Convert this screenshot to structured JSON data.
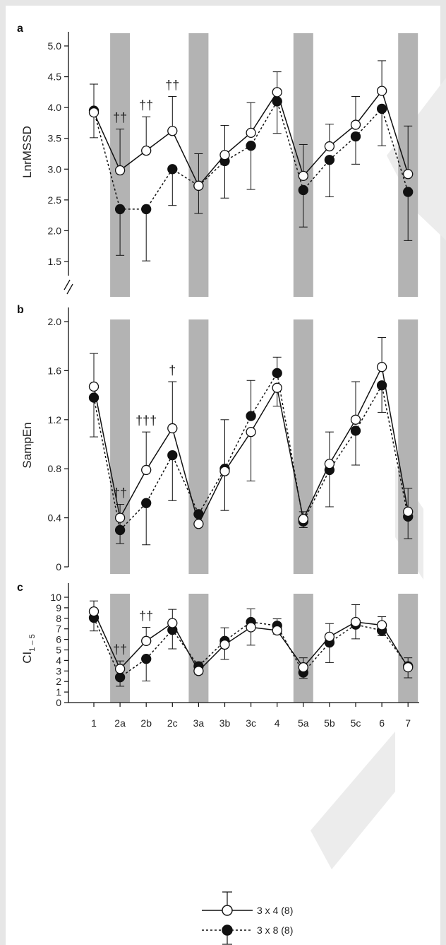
{
  "chart_data": [
    {
      "type": "line",
      "panel_label": "a",
      "ylabel": "LnrMSSD",
      "ylim": [
        1.1,
        5.3
      ],
      "ytick_labels": [
        "1.5",
        "2.0",
        "2.5",
        "3.0",
        "3.5",
        "4.0",
        "4.5",
        "5.0"
      ],
      "yticks": [
        1.5,
        2.0,
        2.5,
        3.0,
        3.5,
        4.0,
        4.5,
        5.0
      ],
      "axis_break": true,
      "categories": [
        "1",
        "2a",
        "2b",
        "2c",
        "3a",
        "3b",
        "3c",
        "4",
        "5a",
        "5b",
        "5c",
        "6",
        "7"
      ],
      "shaded_categories": [
        "2a",
        "3a",
        "5a",
        "7"
      ],
      "series": [
        {
          "name": "3 x 4 (8)",
          "marker": "open",
          "line": "solid",
          "values": [
            3.92,
            2.98,
            3.3,
            3.62,
            2.73,
            3.23,
            3.59,
            4.25,
            2.89,
            3.37,
            3.72,
            4.27,
            2.92
          ],
          "err_upper": [
            4.38,
            3.65,
            3.85,
            4.18,
            3.25,
            3.71,
            4.08,
            4.58,
            3.4,
            3.73,
            4.18,
            4.76,
            3.7
          ],
          "err_lower": [
            3.51,
            null,
            null,
            null,
            2.28,
            null,
            null,
            null,
            null,
            null,
            null,
            null,
            null
          ]
        },
        {
          "name": "3 x 8 (8)",
          "marker": "filled",
          "line": "dashed",
          "values": [
            3.95,
            2.35,
            2.35,
            3.0,
            2.73,
            3.13,
            3.38,
            4.1,
            2.66,
            3.15,
            3.53,
            3.98,
            2.63
          ],
          "err_upper": [
            null,
            null,
            null,
            null,
            null,
            null,
            null,
            null,
            null,
            null,
            null,
            null,
            null
          ],
          "err_lower": [
            null,
            1.6,
            1.51,
            2.41,
            null,
            2.53,
            2.67,
            3.58,
            2.06,
            2.55,
            3.08,
            3.38,
            1.84
          ]
        }
      ],
      "annotations": [
        {
          "category": "2a",
          "text": "††"
        },
        {
          "category": "2b",
          "text": "††"
        },
        {
          "category": "2c",
          "text": "††"
        }
      ]
    },
    {
      "type": "line",
      "panel_label": "b",
      "ylabel": "SampEn",
      "ylim": [
        0,
        2.0
      ],
      "ytick_labels": [
        "0",
        "0.4",
        "0.8",
        "1.2",
        "1.6",
        "2.0"
      ],
      "yticks": [
        0,
        0.4,
        0.8,
        1.2,
        1.6,
        2.0
      ],
      "axis_break": false,
      "categories": [
        "1",
        "2a",
        "2b",
        "2c",
        "3a",
        "3b",
        "3c",
        "4",
        "5a",
        "5b",
        "5c",
        "6",
        "7"
      ],
      "shaded_categories": [
        "2a",
        "3a",
        "5a",
        "7"
      ],
      "series": [
        {
          "name": "3 x 4 (8)",
          "marker": "open",
          "line": "solid",
          "values": [
            1.47,
            0.4,
            0.79,
            1.13,
            0.35,
            0.78,
            1.1,
            1.46,
            0.39,
            0.84,
            1.2,
            1.63,
            0.45
          ],
          "err_upper": [
            1.74,
            0.51,
            1.1,
            1.51,
            null,
            1.2,
            null,
            null,
            null,
            1.1,
            1.51,
            1.87,
            0.64
          ],
          "err_lower": [
            null,
            0.19,
            null,
            null,
            null,
            0.46,
            0.7,
            1.31,
            0.32,
            null,
            null,
            null,
            null
          ]
        },
        {
          "name": "3 x 8 (8)",
          "marker": "filled",
          "line": "dashed",
          "values": [
            1.38,
            0.3,
            0.52,
            0.91,
            0.43,
            0.8,
            1.23,
            1.58,
            0.37,
            0.79,
            1.11,
            1.48,
            0.41
          ],
          "err_upper": [
            null,
            null,
            null,
            null,
            null,
            null,
            1.52,
            1.71,
            0.45,
            null,
            null,
            null,
            null
          ],
          "err_lower": [
            1.06,
            null,
            0.18,
            0.54,
            null,
            null,
            null,
            null,
            null,
            0.49,
            0.83,
            1.26,
            0.23
          ]
        }
      ],
      "annotations": [
        {
          "category": "2a",
          "text": "††"
        },
        {
          "category": "2b",
          "text": "†††"
        },
        {
          "category": "2c",
          "text": "†"
        }
      ]
    },
    {
      "type": "line",
      "panel_label": "c",
      "ylabel": "CI",
      "ylabel_subscript": "1 – 5",
      "ylim": [
        0,
        10
      ],
      "ytick_labels": [
        "0",
        "1",
        "2",
        "3",
        "4",
        "5",
        "6",
        "7",
        "8",
        "9",
        "10"
      ],
      "yticks": [
        0,
        1,
        2,
        3,
        4,
        5,
        6,
        7,
        8,
        9,
        10
      ],
      "axis_break": false,
      "categories": [
        "1",
        "2a",
        "2b",
        "2c",
        "3a",
        "3b",
        "3c",
        "4",
        "5a",
        "5b",
        "5c",
        "6",
        "7"
      ],
      "shaded_categories": [
        "2a",
        "3a",
        "5a",
        "7"
      ],
      "series": [
        {
          "name": "3 x 4 (8)",
          "marker": "open",
          "line": "solid",
          "values": [
            8.65,
            3.2,
            5.85,
            7.55,
            3.0,
            5.5,
            7.15,
            6.85,
            3.35,
            6.25,
            7.65,
            7.35,
            3.35
          ],
          "err_upper": [
            9.65,
            3.95,
            7.15,
            8.85,
            3.85,
            7.1,
            8.9,
            7.95,
            4.25,
            7.5,
            9.3,
            8.15,
            4.25
          ],
          "err_lower": [
            null,
            null,
            null,
            null,
            null,
            null,
            null,
            null,
            null,
            null,
            null,
            null,
            2.35
          ]
        },
        {
          "name": "3 x 8 (8)",
          "marker": "filled",
          "line": "dashed",
          "values": [
            8.05,
            2.4,
            4.15,
            6.9,
            3.45,
            5.85,
            7.65,
            7.3,
            2.85,
            5.7,
            7.4,
            6.85,
            3.45
          ],
          "err_upper": [
            null,
            null,
            null,
            null,
            null,
            null,
            null,
            null,
            null,
            null,
            null,
            null,
            null
          ],
          "err_lower": [
            6.8,
            1.55,
            2.05,
            5.1,
            2.7,
            4.1,
            5.45,
            6.5,
            2.3,
            3.8,
            6.05,
            6.35,
            null
          ]
        }
      ],
      "annotations": [
        {
          "category": "2a",
          "text": "††"
        },
        {
          "category": "2b",
          "text": "††"
        }
      ]
    }
  ],
  "legend": {
    "entries": [
      {
        "label": "3 x 4 (8)",
        "marker": "open",
        "line": "solid"
      },
      {
        "label": "3 x 8 (8)",
        "marker": "filled",
        "line": "dashed"
      }
    ]
  },
  "colors": {
    "background": "#e6e6e6",
    "plot_background": "#ffffff",
    "shade_band": "#b3b3b3",
    "line": "#111111"
  }
}
